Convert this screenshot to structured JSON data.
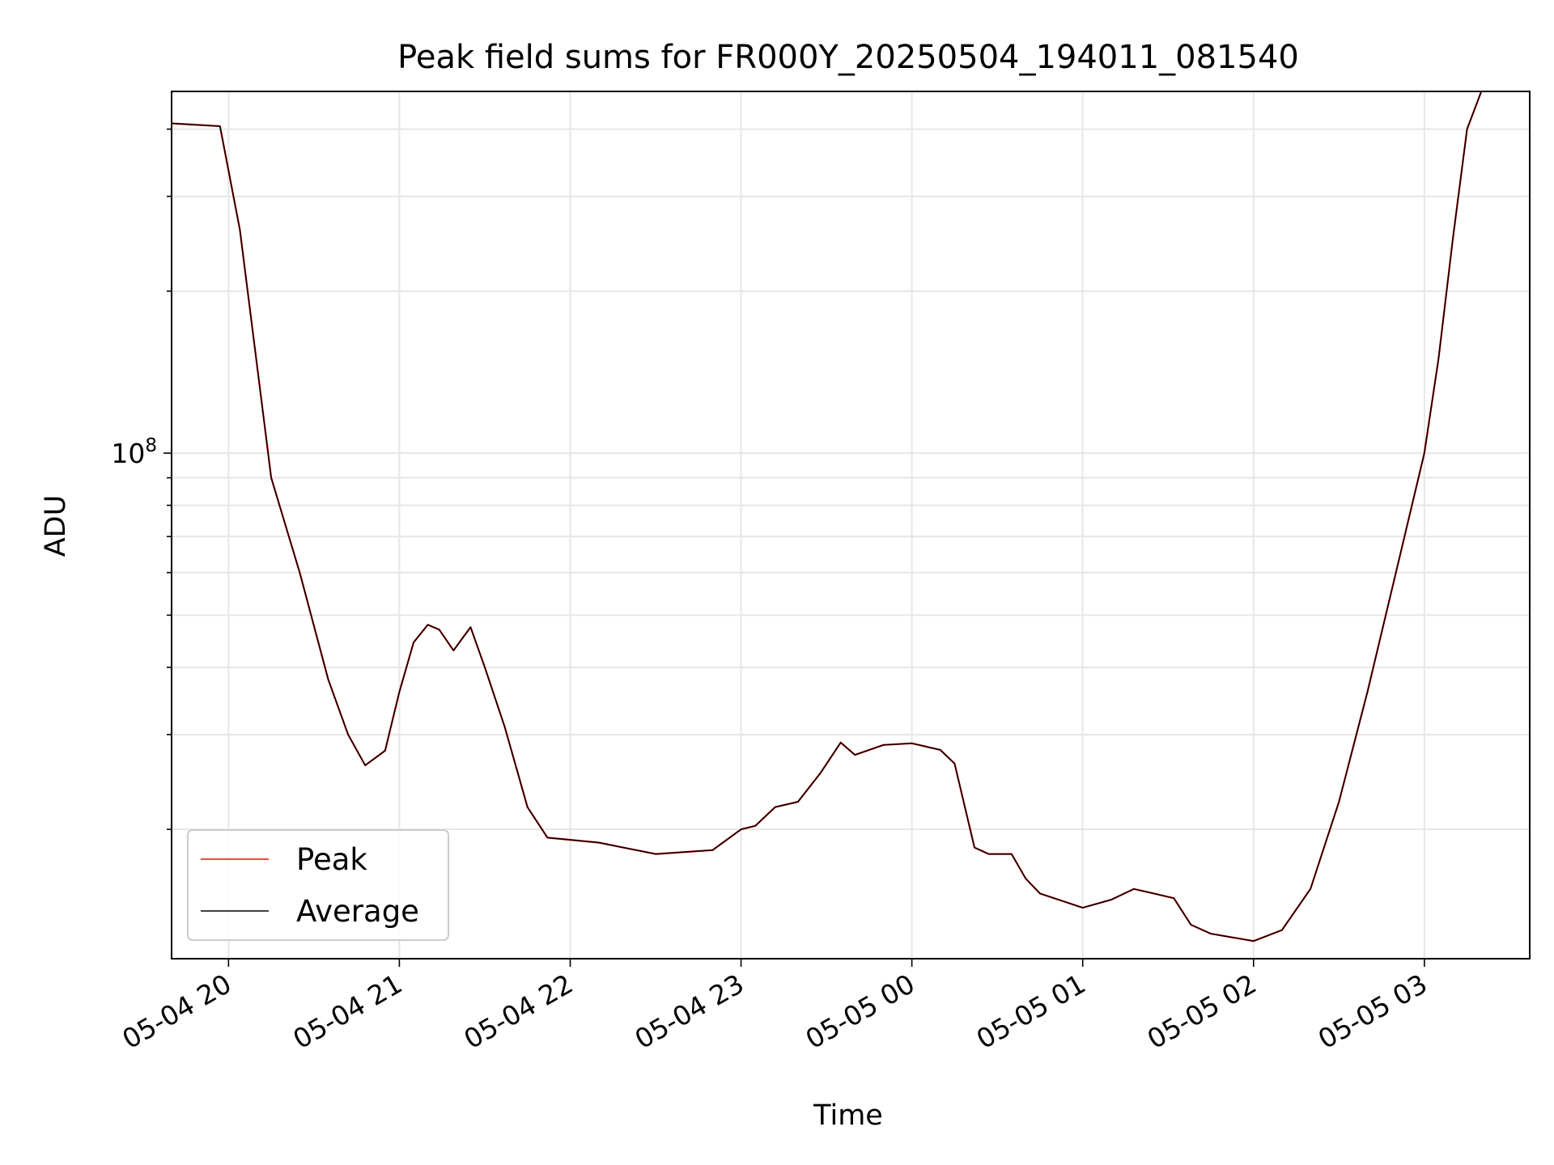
{
  "chart_data": {
    "type": "line",
    "title": "Peak field sums for FR000Y_20250504_194011_081540",
    "xlabel": "Time",
    "ylabel": "ADU",
    "y_scale": "log",
    "grid": true,
    "legend_position": "lower-left",
    "xlim": [
      "2025-05-04 19:40",
      "2025-05-05 03:37"
    ],
    "ylim": [
      11500000,
      470000000
    ],
    "x_ticks": [
      "05-04 20",
      "05-04 21",
      "05-04 22",
      "05-04 23",
      "05-05 00",
      "05-05 01",
      "05-05 02",
      "05-05 03"
    ],
    "y_ticks": [
      "10^8"
    ],
    "series": [
      {
        "name": "Peak",
        "color": "#ff0000",
        "points": [
          [
            "2025-05-04 19:40",
            410000000
          ],
          [
            "2025-05-04 19:57",
            405000000
          ],
          [
            "2025-05-04 20:04",
            260000000
          ],
          [
            "2025-05-04 20:12",
            120000000
          ],
          [
            "2025-05-04 20:15",
            90000000
          ],
          [
            "2025-05-04 20:25",
            60000000
          ],
          [
            "2025-05-04 20:35",
            38000000
          ],
          [
            "2025-05-04 20:42",
            30000000
          ],
          [
            "2025-05-04 20:48",
            26300000
          ],
          [
            "2025-05-04 20:55",
            28000000
          ],
          [
            "2025-05-04 21:00",
            36000000
          ],
          [
            "2025-05-04 21:05",
            44500000
          ],
          [
            "2025-05-04 21:10",
            48000000
          ],
          [
            "2025-05-04 21:14",
            47000000
          ],
          [
            "2025-05-04 21:19",
            43000000
          ],
          [
            "2025-05-04 21:25",
            47500000
          ],
          [
            "2025-05-04 21:30",
            40000000
          ],
          [
            "2025-05-04 21:37",
            31000000
          ],
          [
            "2025-05-04 21:45",
            22000000
          ],
          [
            "2025-05-04 21:52",
            19300000
          ],
          [
            "2025-05-04 22:10",
            18900000
          ],
          [
            "2025-05-04 22:30",
            18000000
          ],
          [
            "2025-05-04 22:50",
            18300000
          ],
          [
            "2025-05-04 23:00",
            20000000
          ],
          [
            "2025-05-04 23:05",
            20300000
          ],
          [
            "2025-05-04 23:12",
            22000000
          ],
          [
            "2025-05-04 23:20",
            22500000
          ],
          [
            "2025-05-04 23:28",
            25500000
          ],
          [
            "2025-05-04 23:35",
            29000000
          ],
          [
            "2025-05-04 23:40",
            27500000
          ],
          [
            "2025-05-04 23:50",
            28700000
          ],
          [
            "2025-05-05 00:00",
            28900000
          ],
          [
            "2025-05-05 00:10",
            28100000
          ],
          [
            "2025-05-05 00:15",
            26500000
          ],
          [
            "2025-05-05 00:22",
            18500000
          ],
          [
            "2025-05-05 00:27",
            18000000
          ],
          [
            "2025-05-05 00:35",
            18000000
          ],
          [
            "2025-05-05 00:40",
            16200000
          ],
          [
            "2025-05-05 00:45",
            15200000
          ],
          [
            "2025-05-05 01:00",
            14300000
          ],
          [
            "2025-05-05 01:10",
            14800000
          ],
          [
            "2025-05-05 01:18",
            15500000
          ],
          [
            "2025-05-05 01:25",
            15200000
          ],
          [
            "2025-05-05 01:32",
            14900000
          ],
          [
            "2025-05-05 01:38",
            13300000
          ],
          [
            "2025-05-05 01:45",
            12800000
          ],
          [
            "2025-05-05 02:00",
            12400000
          ],
          [
            "2025-05-05 02:10",
            13000000
          ],
          [
            "2025-05-05 02:20",
            15500000
          ],
          [
            "2025-05-05 02:30",
            22500000
          ],
          [
            "2025-05-05 02:40",
            36000000
          ],
          [
            "2025-05-05 02:50",
            60000000
          ],
          [
            "2025-05-05 03:00",
            100000000
          ],
          [
            "2025-05-05 03:05",
            150000000
          ],
          [
            "2025-05-05 03:10",
            250000000
          ],
          [
            "2025-05-05 03:15",
            400000000
          ],
          [
            "2025-05-05 03:20",
            470000000
          ]
        ]
      },
      {
        "name": "Average",
        "color": "#000000",
        "points": [
          [
            "2025-05-04 19:40",
            410000000
          ],
          [
            "2025-05-04 19:57",
            405000000
          ],
          [
            "2025-05-04 20:04",
            260000000
          ],
          [
            "2025-05-04 20:12",
            120000000
          ],
          [
            "2025-05-04 20:15",
            90000000
          ],
          [
            "2025-05-04 20:25",
            60000000
          ],
          [
            "2025-05-04 20:35",
            38000000
          ],
          [
            "2025-05-04 20:42",
            30000000
          ],
          [
            "2025-05-04 20:48",
            26300000
          ],
          [
            "2025-05-04 20:55",
            28000000
          ],
          [
            "2025-05-04 21:00",
            36000000
          ],
          [
            "2025-05-04 21:05",
            44500000
          ],
          [
            "2025-05-04 21:10",
            48000000
          ],
          [
            "2025-05-04 21:14",
            47000000
          ],
          [
            "2025-05-04 21:19",
            43000000
          ],
          [
            "2025-05-04 21:25",
            47500000
          ],
          [
            "2025-05-04 21:30",
            40000000
          ],
          [
            "2025-05-04 21:37",
            31000000
          ],
          [
            "2025-05-04 21:45",
            22000000
          ],
          [
            "2025-05-04 21:52",
            19300000
          ],
          [
            "2025-05-04 22:10",
            18900000
          ],
          [
            "2025-05-04 22:30",
            18000000
          ],
          [
            "2025-05-04 22:50",
            18300000
          ],
          [
            "2025-05-04 23:00",
            20000000
          ],
          [
            "2025-05-04 23:05",
            20300000
          ],
          [
            "2025-05-04 23:12",
            22000000
          ],
          [
            "2025-05-04 23:20",
            22500000
          ],
          [
            "2025-05-04 23:28",
            25500000
          ],
          [
            "2025-05-04 23:35",
            29000000
          ],
          [
            "2025-05-04 23:40",
            27500000
          ],
          [
            "2025-05-04 23:50",
            28700000
          ],
          [
            "2025-05-05 00:00",
            28900000
          ],
          [
            "2025-05-05 00:10",
            28100000
          ],
          [
            "2025-05-05 00:15",
            26500000
          ],
          [
            "2025-05-05 00:22",
            18500000
          ],
          [
            "2025-05-05 00:27",
            18000000
          ],
          [
            "2025-05-05 00:35",
            18000000
          ],
          [
            "2025-05-05 00:40",
            16200000
          ],
          [
            "2025-05-05 00:45",
            15200000
          ],
          [
            "2025-05-05 01:00",
            14300000
          ],
          [
            "2025-05-05 01:10",
            14800000
          ],
          [
            "2025-05-05 01:18",
            15500000
          ],
          [
            "2025-05-05 01:25",
            15200000
          ],
          [
            "2025-05-05 01:32",
            14900000
          ],
          [
            "2025-05-05 01:38",
            13300000
          ],
          [
            "2025-05-05 01:45",
            12800000
          ],
          [
            "2025-05-05 02:00",
            12400000
          ],
          [
            "2025-05-05 02:10",
            13000000
          ],
          [
            "2025-05-05 02:20",
            15500000
          ],
          [
            "2025-05-05 02:30",
            22500000
          ],
          [
            "2025-05-05 02:40",
            36000000
          ],
          [
            "2025-05-05 02:50",
            60000000
          ],
          [
            "2025-05-05 03:00",
            100000000
          ],
          [
            "2025-05-05 03:05",
            150000000
          ],
          [
            "2025-05-05 03:10",
            250000000
          ],
          [
            "2025-05-05 03:15",
            400000000
          ],
          [
            "2025-05-05 03:20",
            470000000
          ]
        ]
      }
    ]
  }
}
